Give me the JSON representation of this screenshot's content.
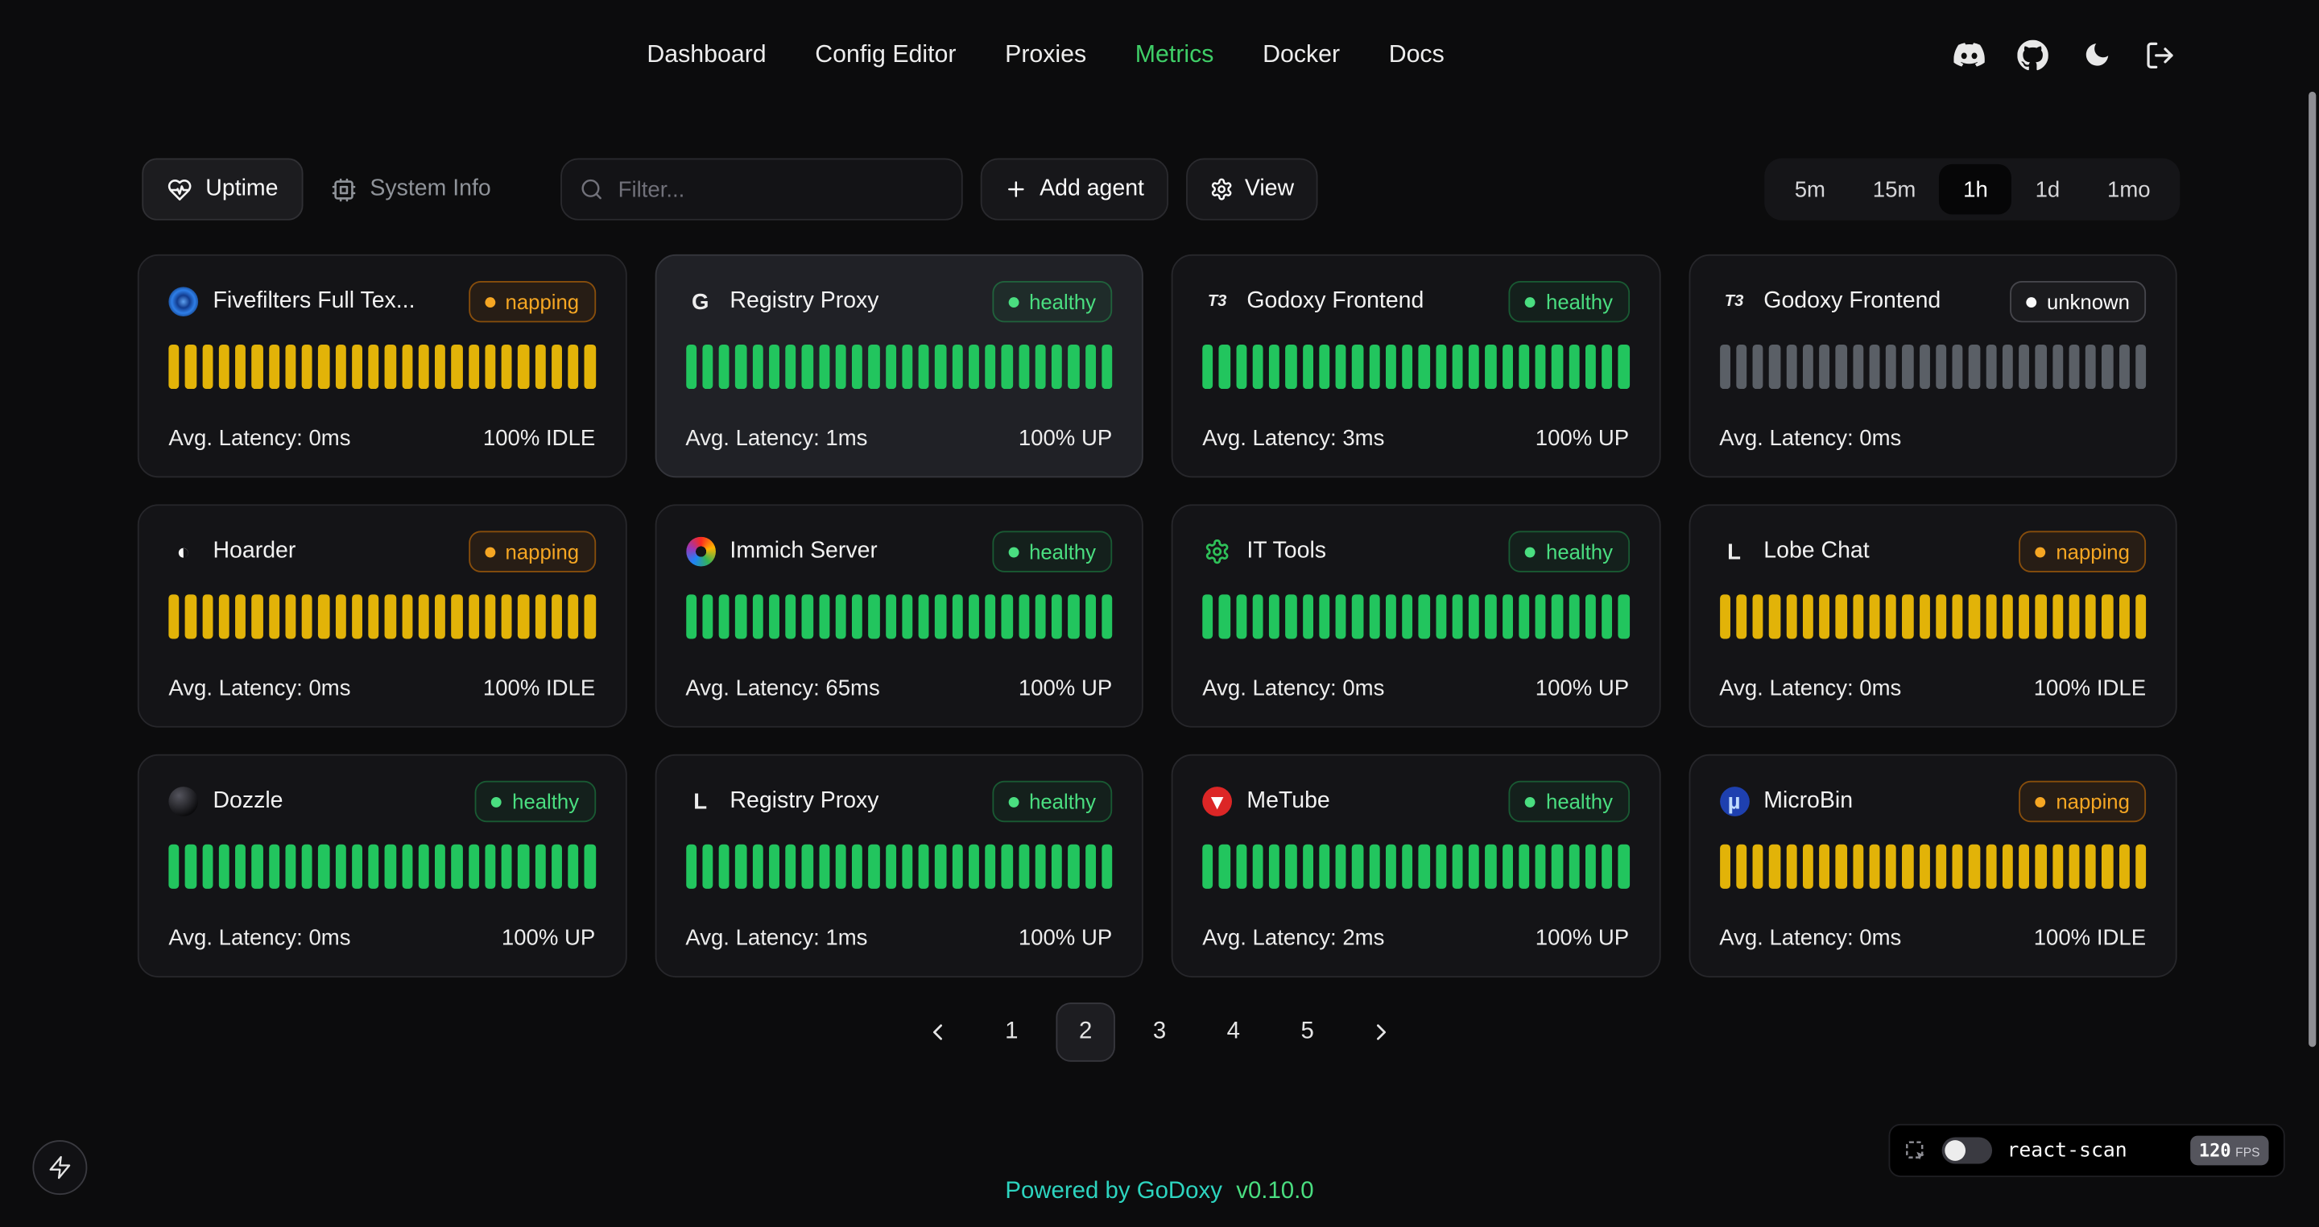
{
  "colors": {
    "accent_green": "#3fce67",
    "bar_up": "#22c55e",
    "bar_idle": "#e2b308",
    "bar_unknown": "#5a5f66",
    "badge_healthy": "#4ade80",
    "badge_napping": "#f5a623",
    "badge_unknown": "#fafafa",
    "footer_teal": "#2dd4bf",
    "footer_version_green": "#4ade80"
  },
  "nav": {
    "items": [
      {
        "label": "Dashboard",
        "active": false
      },
      {
        "label": "Config Editor",
        "active": false
      },
      {
        "label": "Proxies",
        "active": false
      },
      {
        "label": "Metrics",
        "active": true
      },
      {
        "label": "Docker",
        "active": false
      },
      {
        "label": "Docs",
        "active": false
      }
    ],
    "icons": [
      "discord-icon",
      "github-icon",
      "dark-mode-moon-icon",
      "logout-icon"
    ]
  },
  "toolbar": {
    "uptime_tab": "Uptime",
    "system_info_tab": "System Info",
    "filter_placeholder": "Filter...",
    "add_agent": "Add agent",
    "view": "View",
    "time_ranges": [
      {
        "label": "5m",
        "active": false
      },
      {
        "label": "15m",
        "active": false
      },
      {
        "label": "1h",
        "active": true
      },
      {
        "label": "1d",
        "active": false
      },
      {
        "label": "1mo",
        "active": false
      }
    ]
  },
  "bars_per_card": 26,
  "cards": [
    {
      "name": "Fivefilters Full Tex...",
      "icon": {
        "name": "fivefilters-icon",
        "bg": "radial-gradient(circle at 50% 50%, #5ea0ef 0%, #123c8f 30%, #2f7fe8 55%, #0a2e6b 85%)"
      },
      "badge": {
        "label": "napping",
        "variant": "napping"
      },
      "bars": "idle",
      "latency": "Avg. Latency: 0ms",
      "status": "100% IDLE",
      "highlight": false
    },
    {
      "name": "Registry Proxy",
      "icon": {
        "name": "registry-proxy-icon",
        "text": "G",
        "color": "#ededed"
      },
      "badge": {
        "label": "healthy",
        "variant": "healthy"
      },
      "bars": "up",
      "latency": "Avg. Latency: 1ms",
      "status": "100% UP",
      "highlight": true
    },
    {
      "name": "Godoxy Frontend",
      "icon": {
        "name": "t3-logo-icon",
        "text": "T3",
        "color": "#ededed"
      },
      "badge": {
        "label": "healthy",
        "variant": "healthy"
      },
      "bars": "up",
      "latency": "Avg. Latency: 3ms",
      "status": "100% UP",
      "highlight": false
    },
    {
      "name": "Godoxy Frontend",
      "icon": {
        "name": "t3-logo-icon",
        "text": "T3",
        "color": "#ededed"
      },
      "badge": {
        "label": "unknown",
        "variant": "unknown"
      },
      "bars": "unknown",
      "latency": "Avg. Latency: 0ms",
      "status": "",
      "highlight": false
    },
    {
      "name": "Hoarder",
      "icon": {
        "name": "hoarder-icon",
        "text": "◐",
        "color": "#fafafa"
      },
      "badge": {
        "label": "napping",
        "variant": "napping"
      },
      "bars": "idle",
      "latency": "Avg. Latency: 0ms",
      "status": "100% IDLE",
      "highlight": false
    },
    {
      "name": "Immich Server",
      "icon": {
        "name": "immich-icon",
        "bg": "radial-gradient(circle, #141417 0 3.5px, rgba(0,0,0,0) 3.6px), conic-gradient(from 0deg, #fa2921, #ffb400, #34b354, #1e83f7, #9b36b7, #fa2921)"
      },
      "badge": {
        "label": "healthy",
        "variant": "healthy"
      },
      "bars": "up",
      "latency": "Avg. Latency: 65ms",
      "status": "100% UP",
      "highlight": false
    },
    {
      "name": "IT Tools",
      "icon": {
        "name": "it-tools-gear-icon",
        "type": "gear",
        "color": "#2fc159"
      },
      "badge": {
        "label": "healthy",
        "variant": "healthy"
      },
      "bars": "up",
      "latency": "Avg. Latency: 0ms",
      "status": "100% UP",
      "highlight": false
    },
    {
      "name": "Lobe Chat",
      "icon": {
        "name": "lobe-chat-icon",
        "text": "L",
        "color": "#ededed"
      },
      "badge": {
        "label": "napping",
        "variant": "napping"
      },
      "bars": "idle",
      "latency": "Avg. Latency: 0ms",
      "status": "100% IDLE",
      "highlight": false
    },
    {
      "name": "Dozzle",
      "icon": {
        "name": "dozzle-icon",
        "bg": "radial-gradient(circle at 35% 30%, #55555e 0%, #0b0b0d 75%)"
      },
      "badge": {
        "label": "healthy",
        "variant": "healthy"
      },
      "bars": "up",
      "latency": "Avg. Latency: 0ms",
      "status": "100% UP",
      "highlight": false
    },
    {
      "name": "Registry Proxy",
      "icon": {
        "name": "registry-proxy-icon",
        "text": "L",
        "color": "#ededed"
      },
      "badge": {
        "label": "healthy",
        "variant": "healthy"
      },
      "bars": "up",
      "latency": "Avg. Latency: 1ms",
      "status": "100% UP",
      "highlight": false
    },
    {
      "name": "MeTube",
      "icon": {
        "name": "metube-icon",
        "text": "▾",
        "color": "#ffffff",
        "bg": "#dc2626"
      },
      "badge": {
        "label": "healthy",
        "variant": "healthy"
      },
      "bars": "up",
      "latency": "Avg. Latency: 2ms",
      "status": "100% UP",
      "highlight": false
    },
    {
      "name": "MicroBin",
      "icon": {
        "name": "microbin-icon",
        "text": "µ",
        "color": "#bfdbfe",
        "bg": "#1e40af"
      },
      "badge": {
        "label": "napping",
        "variant": "napping"
      },
      "bars": "idle",
      "latency": "Avg. Latency: 0ms",
      "status": "100% IDLE",
      "highlight": false
    }
  ],
  "pagination": {
    "pages": [
      {
        "label": "1",
        "active": false
      },
      {
        "label": "2",
        "active": true
      },
      {
        "label": "3",
        "active": false
      },
      {
        "label": "4",
        "active": false
      },
      {
        "label": "5",
        "active": false
      }
    ]
  },
  "footer": {
    "powered_by": "Powered by",
    "brand": "GoDoxy",
    "version": "v0.10.0"
  },
  "react_scan": {
    "label": "react-scan",
    "fps": "120",
    "fps_unit": "FPS"
  }
}
